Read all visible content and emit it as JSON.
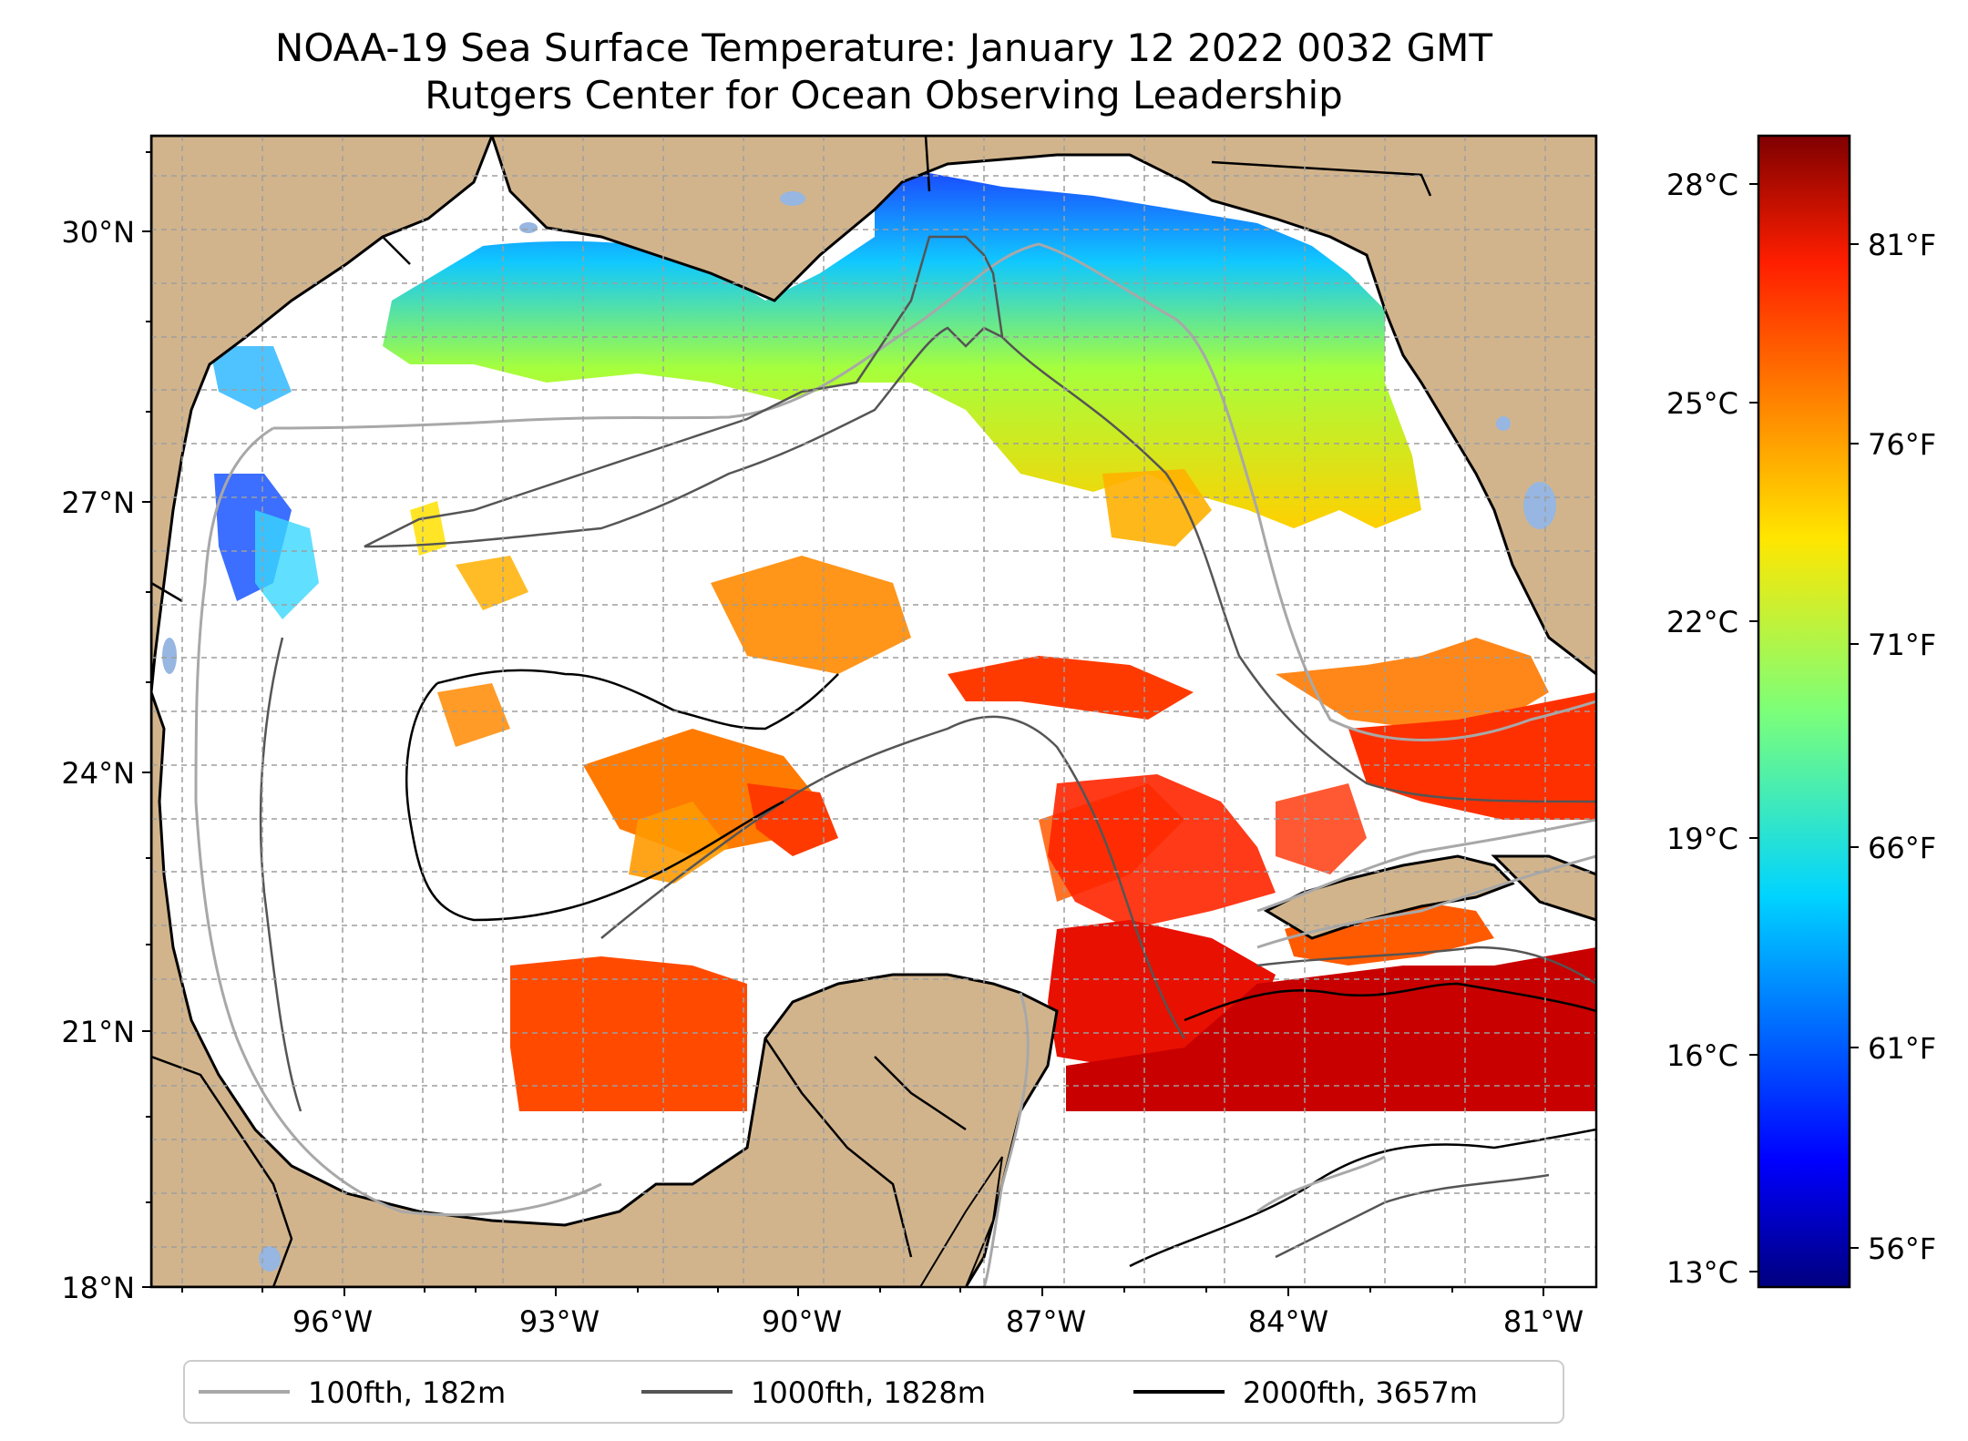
{
  "title": "NOAA-19 Sea Surface Temperature: January 12 2022 0032 GMT",
  "subtitle": "Rutgers Center for Ocean Observing Leadership",
  "lat_labels": [
    "30°N",
    "27°N",
    "24°N",
    "21°N",
    "18°N"
  ],
  "lon_labels": [
    "96°W",
    "93°W",
    "90°W",
    "87°W",
    "84°W",
    "81°W"
  ],
  "colorbar": {
    "celsius_labels": [
      "28°C",
      "25°C",
      "22°C",
      "19°C",
      "16°C",
      "13°C"
    ],
    "fahrenheit_labels": [
      "81°F",
      "76°F",
      "71°F",
      "66°F",
      "61°F",
      "56°F"
    ],
    "range_c": [
      12.8,
      28.8
    ],
    "colormap": "jet"
  },
  "legend": {
    "items": [
      {
        "label": "100fth, 182m",
        "color": "#a8a8a8"
      },
      {
        "label": "1000fth, 1828m",
        "color": "#555555"
      },
      {
        "label": "2000fth, 3657m",
        "color": "#000000"
      }
    ]
  },
  "colors": {
    "land": "#d2b48c",
    "lakes": "#97b6e1",
    "no_data": "#ffffff"
  }
}
